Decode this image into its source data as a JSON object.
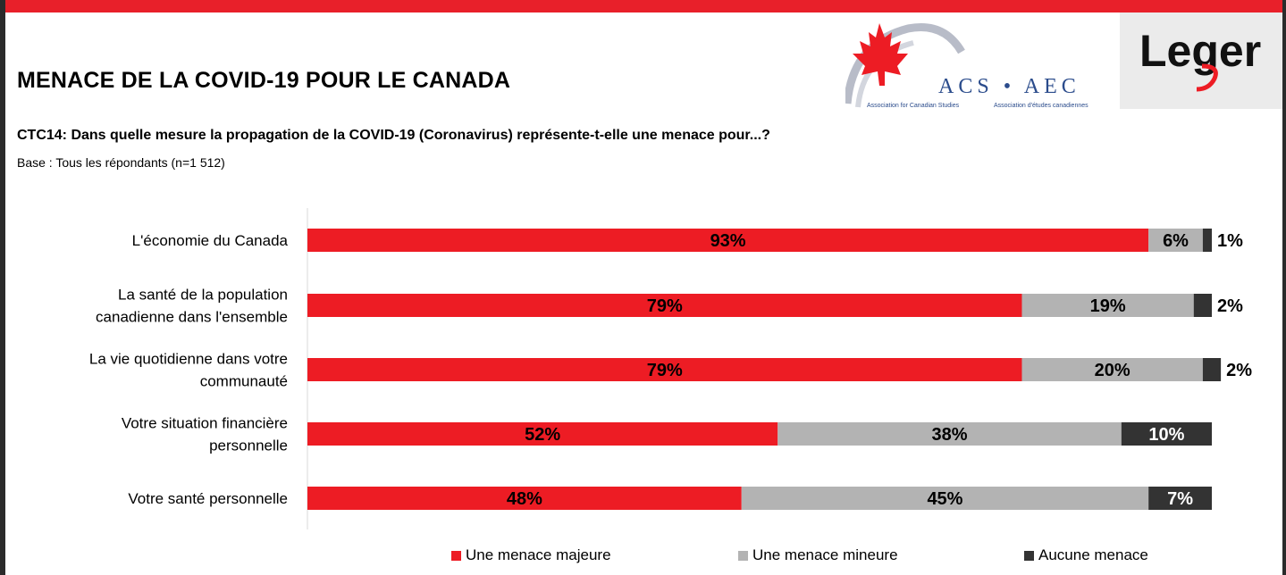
{
  "header": {
    "title": "MENACE DE LA COVID-19 POUR LE CANADA",
    "question": "CTC14: Dans quelle mesure la propagation de la COVID-19 (Coronavirus) représente-t-elle une menace pour...?",
    "base": "Base : Tous les répondants (n=1 512)"
  },
  "logos": {
    "acs_text": "ACS • AEC",
    "acs_sub_en": "Association for Canadian Studies",
    "acs_sub_fr": "Association d'études canadiennes",
    "leger": "Leger"
  },
  "colors": {
    "majeure": "#ed1c24",
    "mineure": "#b3b3b3",
    "aucune": "#333333",
    "brand_red": "#e8202a"
  },
  "chart_data": {
    "type": "bar",
    "orientation": "horizontal",
    "stacked": true,
    "categories": [
      [
        "L'économie du Canada"
      ],
      [
        "La santé de la population",
        "canadienne dans l'ensemble"
      ],
      [
        "La vie quotidienne dans votre",
        "communauté"
      ],
      [
        "Votre situation financière",
        "personnelle"
      ],
      [
        "Votre santé personnelle"
      ]
    ],
    "series": [
      {
        "name": "Une menace majeure",
        "values": [
          93,
          79,
          79,
          52,
          48
        ]
      },
      {
        "name": "Une menace mineure",
        "values": [
          6,
          19,
          20,
          38,
          45
        ]
      },
      {
        "name": "Aucune menace",
        "values": [
          1,
          2,
          2,
          10,
          7
        ]
      }
    ],
    "value_suffix": "%",
    "xlim": [
      0,
      100
    ],
    "grid": false,
    "legend_position": "bottom"
  }
}
